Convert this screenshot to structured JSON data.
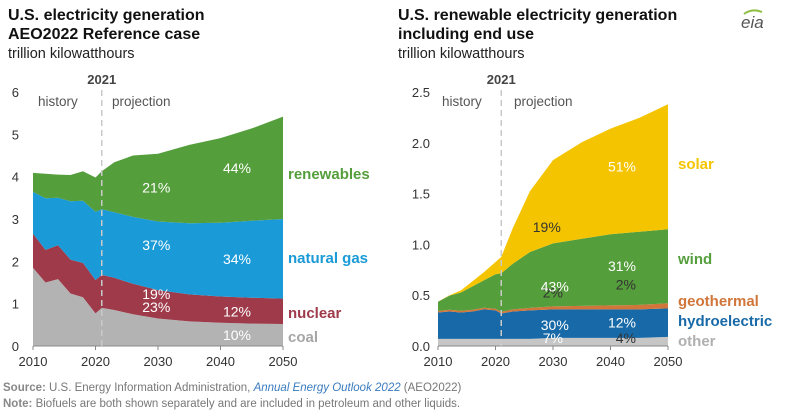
{
  "logo": "eia",
  "chart_data": [
    {
      "type": "area",
      "stacked": true,
      "title": [
        "U.S. electricity generation",
        "AEO2022 Reference case"
      ],
      "subtitle": "trillion kilowatthours",
      "x": [
        2010,
        2012,
        2014,
        2016,
        2018,
        2020,
        2021,
        2023,
        2026,
        2030,
        2035,
        2040,
        2045,
        2050
      ],
      "xticks": [
        2010,
        2020,
        2030,
        2040,
        2050
      ],
      "ylim": [
        0,
        6
      ],
      "yticks": [
        0,
        1,
        2,
        3,
        4,
        5,
        6
      ],
      "divider_year": 2021,
      "divider_label": "2021",
      "phase_labels": [
        "history",
        "projection"
      ],
      "series": [
        {
          "name": "coal",
          "color": "#b3b3b3",
          "label_color": "#a6a6a6",
          "values": [
            1.85,
            1.5,
            1.58,
            1.24,
            1.15,
            0.77,
            0.9,
            0.85,
            0.75,
            0.65,
            0.58,
            0.55,
            0.53,
            0.52
          ],
          "share_labels": [
            "23%",
            "10%"
          ]
        },
        {
          "name": "nuclear",
          "color": "#9e3a4a",
          "label_color": "#9e3a4a",
          "values": [
            0.8,
            0.77,
            0.8,
            0.8,
            0.81,
            0.79,
            0.78,
            0.76,
            0.72,
            0.67,
            0.64,
            0.62,
            0.61,
            0.6
          ],
          "share_labels": [
            "19%",
            "12%"
          ]
        },
        {
          "name": "natural gas",
          "color": "#1a9ad6",
          "label_color": "#1a9ad6",
          "values": [
            0.99,
            1.22,
            1.12,
            1.38,
            1.47,
            1.61,
            1.55,
            1.55,
            1.58,
            1.62,
            1.68,
            1.74,
            1.82,
            1.88
          ],
          "share_labels": [
            "37%",
            "34%"
          ]
        },
        {
          "name": "renewables",
          "color": "#559e3c",
          "label_color": "#559e3c",
          "values": [
            0.45,
            0.58,
            0.55,
            0.62,
            0.7,
            0.81,
            0.9,
            1.18,
            1.45,
            1.6,
            1.85,
            2.0,
            2.18,
            2.42
          ],
          "share_labels": [
            "21%",
            "44%"
          ]
        }
      ]
    },
    {
      "type": "area",
      "stacked": true,
      "title": [
        "U.S. renewable electricity generation",
        "including end use"
      ],
      "subtitle": "trillion kilowatthours",
      "x": [
        2010,
        2012,
        2014,
        2016,
        2018,
        2020,
        2021,
        2023,
        2026,
        2030,
        2035,
        2040,
        2045,
        2050
      ],
      "xticks": [
        2010,
        2020,
        2030,
        2040,
        2050
      ],
      "ylim": [
        0,
        2.5
      ],
      "yticks": [
        0,
        0.5,
        1.0,
        1.5,
        2.0,
        2.5
      ],
      "ytick_labels": [
        "0.0",
        "0.5",
        "1.0",
        "1.5",
        "2.0",
        "2.5"
      ],
      "divider_year": 2021,
      "divider_label": "2021",
      "phase_labels": [
        "history",
        "projection"
      ],
      "series": [
        {
          "name": "other",
          "color": "#c6c6c6",
          "label_color": "#b0b0b0",
          "values": [
            0.07,
            0.07,
            0.07,
            0.07,
            0.07,
            0.07,
            0.07,
            0.07,
            0.07,
            0.08,
            0.08,
            0.08,
            0.08,
            0.09
          ],
          "share_labels": [
            "7%",
            "4%"
          ]
        },
        {
          "name": "hydroelectric",
          "color": "#1769a7",
          "label_color": "#1769a7",
          "values": [
            0.26,
            0.27,
            0.26,
            0.27,
            0.29,
            0.28,
            0.25,
            0.27,
            0.28,
            0.28,
            0.28,
            0.28,
            0.28,
            0.28
          ],
          "share_labels": [
            "30%",
            "12%"
          ]
        },
        {
          "name": "geothermal",
          "color": "#d0763a",
          "label_color": "#d0763a",
          "values": [
            0.015,
            0.016,
            0.017,
            0.017,
            0.017,
            0.017,
            0.017,
            0.02,
            0.025,
            0.03,
            0.035,
            0.04,
            0.045,
            0.05
          ],
          "share_labels": [
            "2%",
            "2%"
          ]
        },
        {
          "name": "wind",
          "color": "#559e3c",
          "label_color": "#559e3c",
          "values": [
            0.09,
            0.14,
            0.18,
            0.23,
            0.27,
            0.34,
            0.38,
            0.45,
            0.55,
            0.62,
            0.66,
            0.7,
            0.72,
            0.73
          ],
          "share_labels": [
            "43%",
            "31%"
          ]
        },
        {
          "name": "solar",
          "color": "#f5c400",
          "label_color": "#f5c400",
          "values": [
            0.002,
            0.004,
            0.02,
            0.05,
            0.08,
            0.12,
            0.16,
            0.35,
            0.6,
            0.82,
            0.95,
            1.04,
            1.12,
            1.23
          ],
          "share_labels": [
            "19%",
            "51%"
          ]
        }
      ]
    }
  ],
  "footer": {
    "source_label": "Source:",
    "source_text": " U.S. Energy Information Administration, ",
    "source_pub": "Annual Energy Outlook 2022",
    "source_tail": " (AEO2022)",
    "note_label": "Note:",
    "note_text": " Biofuels are both shown separately and are included in petroleum and other liquids."
  }
}
